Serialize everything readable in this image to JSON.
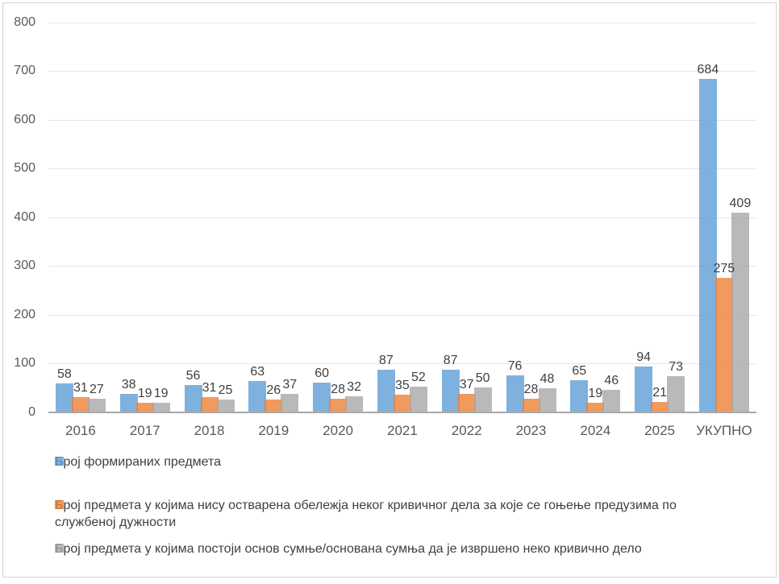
{
  "chart_data": {
    "type": "bar",
    "title": "",
    "categories": [
      "2016",
      "2017",
      "2018",
      "2019",
      "2020",
      "2021",
      "2022",
      "2023",
      "2024",
      "2025",
      "УКУПНО"
    ],
    "series": [
      {
        "name": "Број формираних предмета",
        "color": "#5B9BD5",
        "values": [
          58,
          38,
          56,
          63,
          60,
          87,
          87,
          76,
          65,
          94,
          684
        ]
      },
      {
        "name": "Број предмета у којима нису остварена обележја неког кривичног дела за које се гоњење предузима по\nслужбеној дужности",
        "color": "#ED7D31",
        "values": [
          31,
          19,
          31,
          26,
          28,
          35,
          37,
          28,
          19,
          21,
          275
        ]
      },
      {
        "name": "Број предмета у којима постоји основ сумње/основана сумња да је извршено неко кривично дело",
        "color": "#A5A5A5",
        "values": [
          27,
          19,
          25,
          37,
          32,
          52,
          50,
          48,
          46,
          73,
          409
        ]
      }
    ],
    "y_axis": {
      "min": 0,
      "max": 800,
      "step": 100,
      "tick_labels": [
        "0",
        "100",
        "200",
        "300",
        "400",
        "500",
        "600",
        "700",
        "800"
      ]
    },
    "grid": true,
    "data_labels": "outside-end",
    "legend_position": "bottom"
  },
  "colors": {
    "background": "#ffffff",
    "border": "#d4d4d4",
    "gridline": "#e7e7e7",
    "axis_line": "#a9a9a9",
    "axis_text": "#595959",
    "data_label_text": "#404040",
    "series_opacity": "0.78"
  }
}
